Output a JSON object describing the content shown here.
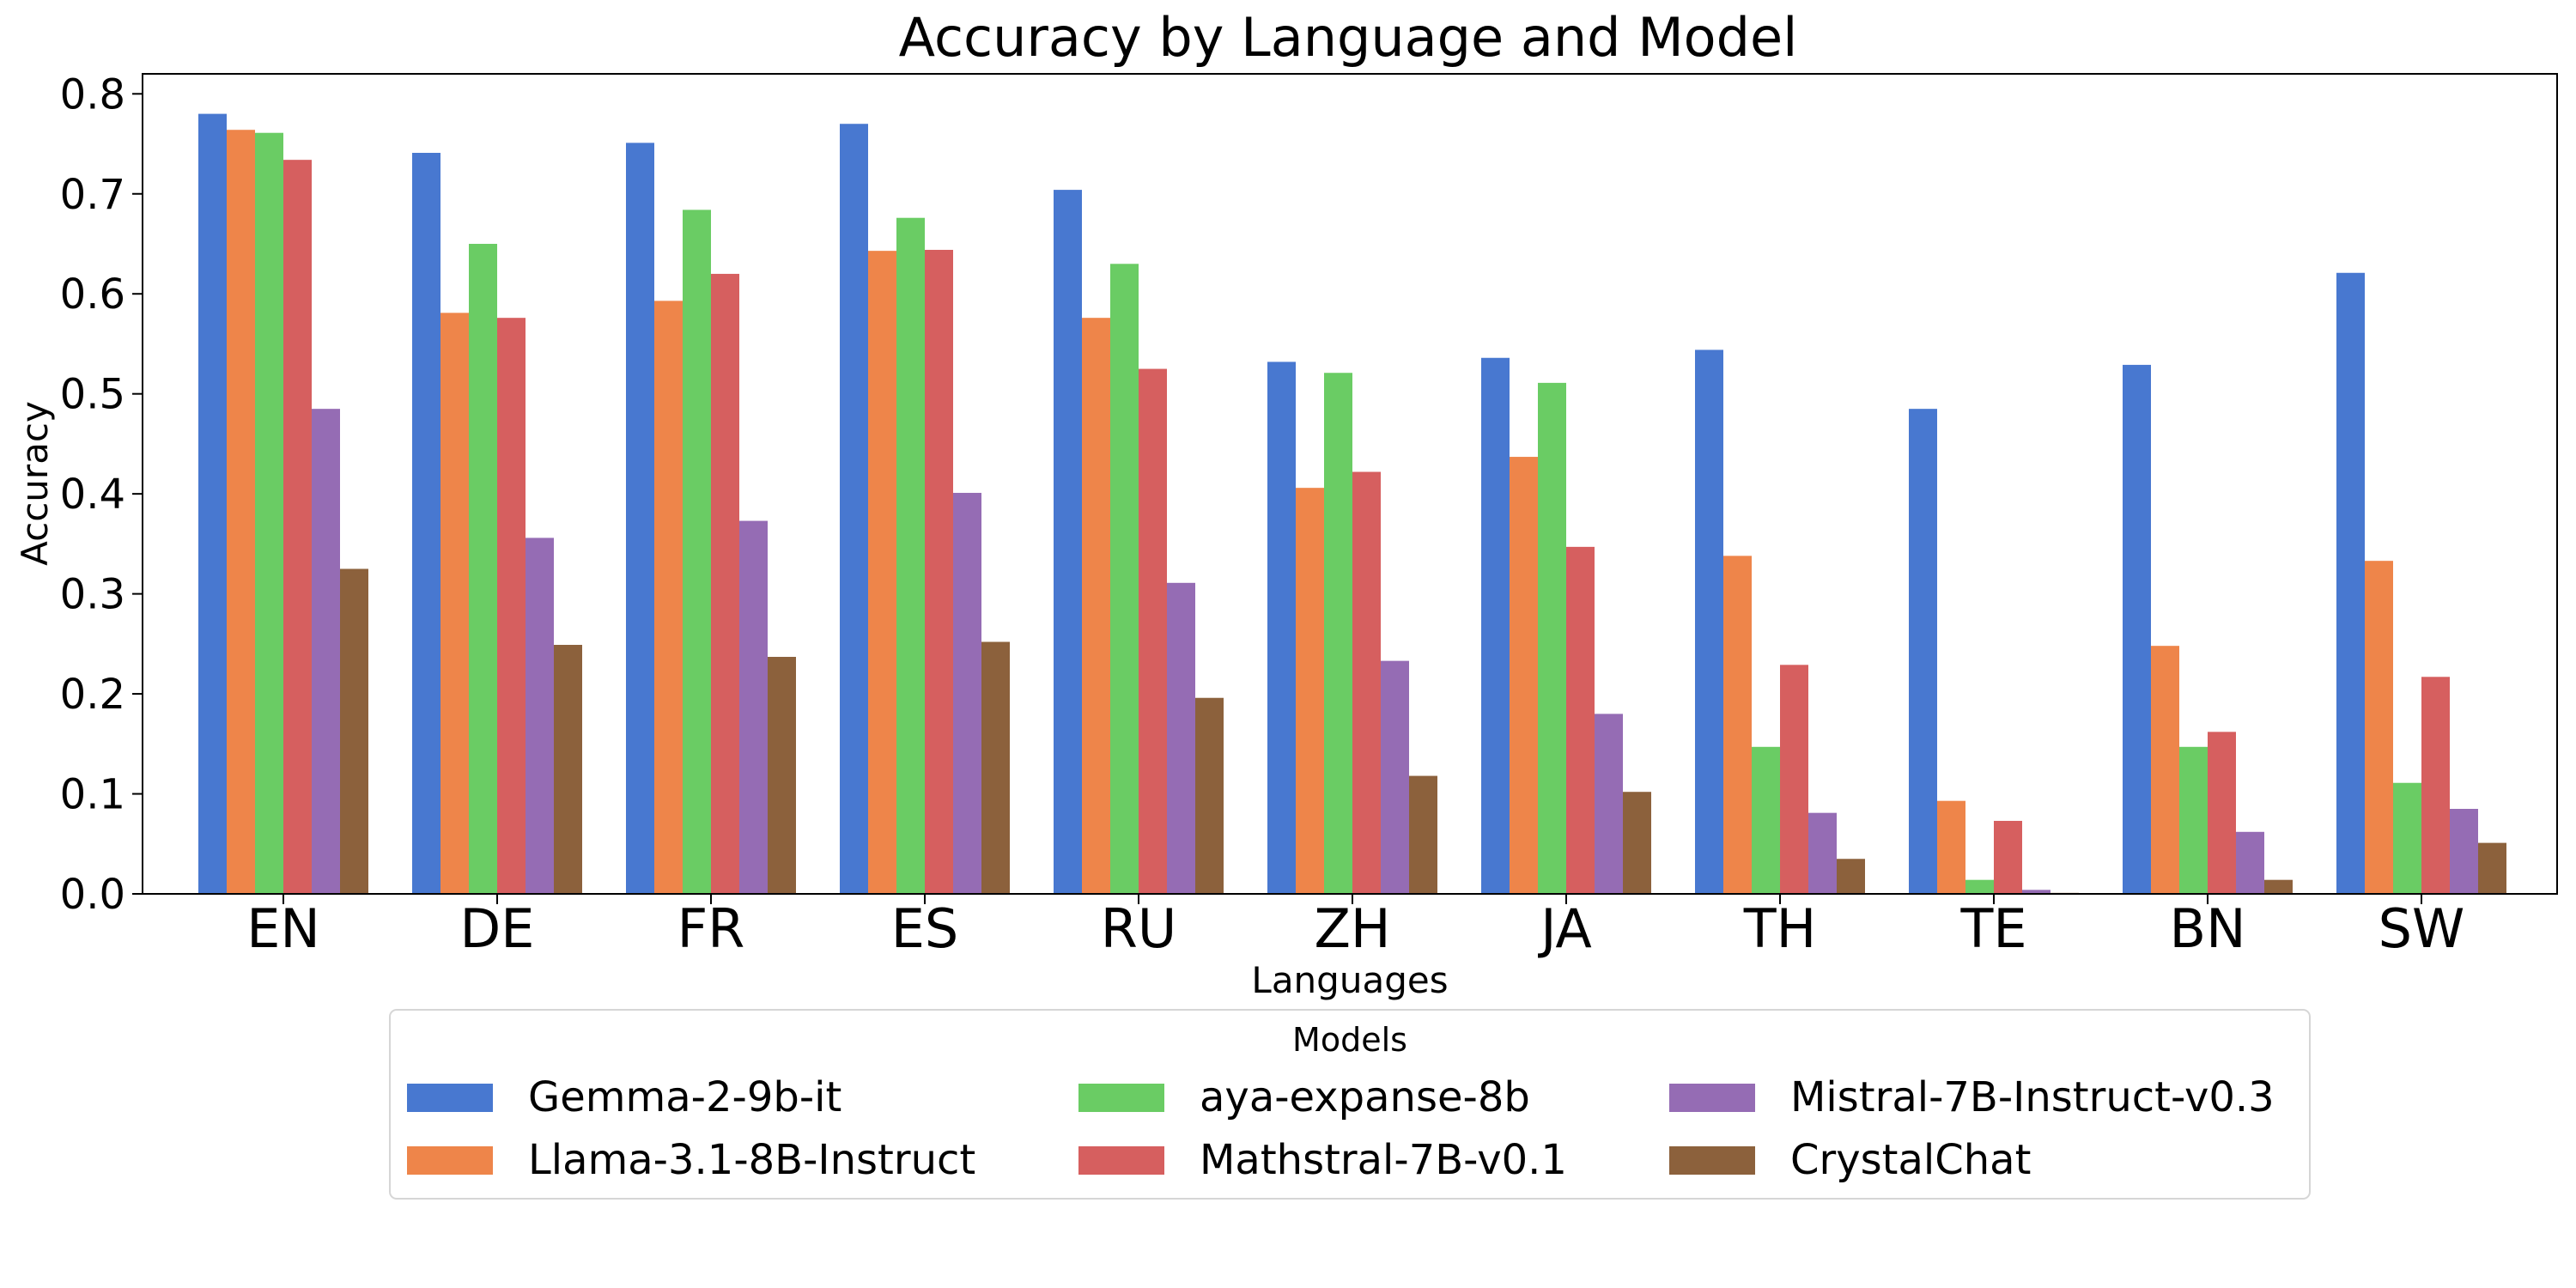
{
  "chart_data": {
    "type": "bar",
    "title": "Accuracy by Language and Model",
    "xlabel": "Languages",
    "ylabel": "Accuracy",
    "ylim": [
      0,
      0.82
    ],
    "yticks": [
      "0.0",
      "0.1",
      "0.2",
      "0.3",
      "0.4",
      "0.5",
      "0.6",
      "0.7",
      "0.8"
    ],
    "categories": [
      "EN",
      "DE",
      "FR",
      "ES",
      "RU",
      "ZH",
      "JA",
      "TH",
      "TE",
      "BN",
      "SW"
    ],
    "grid": false,
    "legend": {
      "title": "Models",
      "placement": "below",
      "columns": 3
    },
    "series": [
      {
        "name": "Gemma-2-9b-it",
        "color": "#4878d0",
        "values": [
          0.78,
          0.741,
          0.751,
          0.77,
          0.704,
          0.532,
          0.536,
          0.544,
          0.485,
          0.529,
          0.621
        ]
      },
      {
        "name": "Llama-3.1-8B-Instruct",
        "color": "#ee854a",
        "values": [
          0.764,
          0.581,
          0.593,
          0.643,
          0.576,
          0.406,
          0.437,
          0.338,
          0.093,
          0.248,
          0.333
        ]
      },
      {
        "name": "aya-expanse-8b",
        "color": "#6acc64",
        "values": [
          0.761,
          0.65,
          0.684,
          0.676,
          0.63,
          0.521,
          0.511,
          0.147,
          0.014,
          0.147,
          0.111
        ]
      },
      {
        "name": "Mathstral-7B-v0.1",
        "color": "#d65f5f",
        "values": [
          0.734,
          0.576,
          0.62,
          0.644,
          0.525,
          0.422,
          0.347,
          0.229,
          0.073,
          0.162,
          0.217
        ]
      },
      {
        "name": "Mistral-7B-Instruct-v0.3",
        "color": "#956cb4",
        "values": [
          0.485,
          0.356,
          0.373,
          0.401,
          0.311,
          0.233,
          0.18,
          0.081,
          0.004,
          0.062,
          0.085
        ]
      },
      {
        "name": "CrystalChat",
        "color": "#8c613c",
        "values": [
          0.325,
          0.249,
          0.237,
          0.252,
          0.196,
          0.118,
          0.102,
          0.035,
          0.001,
          0.014,
          0.051
        ]
      }
    ]
  }
}
